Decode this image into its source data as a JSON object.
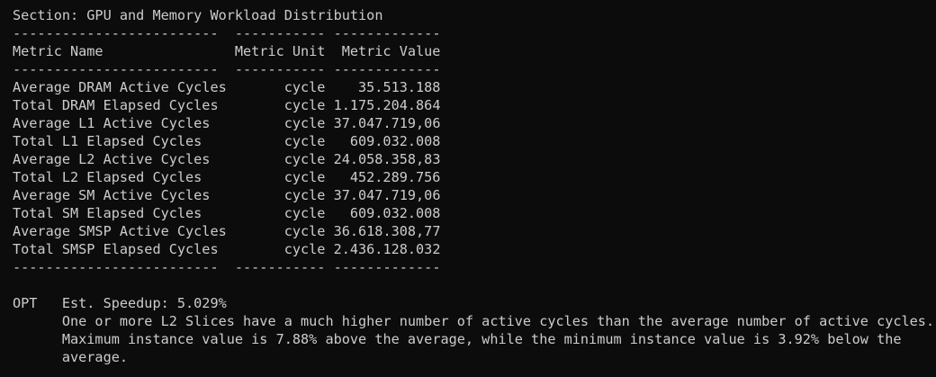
{
  "section_title": "Section: GPU and Memory Workload Distribution",
  "table": {
    "separator": [
      "-------------------------",
      "-----------",
      "-------------"
    ],
    "header": [
      "Metric Name",
      "Metric Unit",
      "Metric Value"
    ],
    "rows": [
      [
        "Average DRAM Active Cycles",
        "cycle",
        "35.513.188"
      ],
      [
        "Total DRAM Elapsed Cycles",
        "cycle",
        "1.175.204.864"
      ],
      [
        "Average L1 Active Cycles",
        "cycle",
        "37.047.719,06"
      ],
      [
        "Total L1 Elapsed Cycles",
        "cycle",
        "609.032.008"
      ],
      [
        "Average L2 Active Cycles",
        "cycle",
        "24.058.358,83"
      ],
      [
        "Total L2 Elapsed Cycles",
        "cycle",
        "452.289.756"
      ],
      [
        "Average SM Active Cycles",
        "cycle",
        "37.047.719,06"
      ],
      [
        "Total SM Elapsed Cycles",
        "cycle",
        "609.032.008"
      ],
      [
        "Average SMSP Active Cycles",
        "cycle",
        "36.618.308,77"
      ],
      [
        "Total SMSP Elapsed Cycles",
        "cycle",
        "2.436.128.032"
      ]
    ]
  },
  "opt": {
    "label": "OPT",
    "speedup": "Est. Speedup: 5.029%",
    "message": [
      "One or more L2 Slices have a much higher number of active cycles than the average number of active cycles.",
      "Maximum instance value is 7.88% above the average, while the minimum instance value is 3.92% below the",
      "average."
    ]
  }
}
